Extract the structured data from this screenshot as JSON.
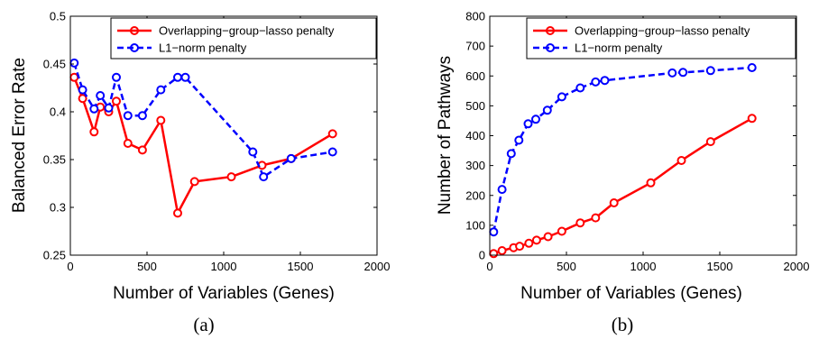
{
  "chart_data": [
    {
      "type": "line",
      "panel_label": "(a)",
      "xlabel": "Number of Variables (Genes)",
      "ylabel": "Balanced Error Rate",
      "xlim": [
        0,
        2000
      ],
      "ylim": [
        0.25,
        0.5
      ],
      "xticks": [
        "0",
        "500",
        "1000",
        "1500",
        "2000"
      ],
      "yticks": [
        "0.25",
        "0.3",
        "0.35",
        "0.4",
        "0.45",
        "0.5"
      ],
      "xtick_values": [
        0,
        500,
        1000,
        1500,
        2000
      ],
      "ytick_values": [
        0.25,
        0.3,
        0.35,
        0.4,
        0.45,
        0.5
      ],
      "legend_position": "top-right",
      "grid": false,
      "series": [
        {
          "name": "Overlapping−group−lasso penalty",
          "color": "#ff0000",
          "line_style": "solid",
          "marker": "circle",
          "x": [
            25,
            80,
            155,
            195,
            250,
            300,
            375,
            470,
            590,
            700,
            810,
            1050,
            1250,
            1440,
            1710
          ],
          "y": [
            0.436,
            0.414,
            0.379,
            0.405,
            0.4,
            0.411,
            0.367,
            0.36,
            0.391,
            0.294,
            0.327,
            0.332,
            0.344,
            0.351,
            0.377
          ]
        },
        {
          "name": "L1−norm penalty",
          "color": "#0000ff",
          "line_style": "dashed",
          "marker": "circle",
          "x": [
            25,
            80,
            155,
            195,
            250,
            300,
            375,
            470,
            590,
            700,
            750,
            1190,
            1260,
            1440,
            1710
          ],
          "y": [
            0.451,
            0.423,
            0.403,
            0.417,
            0.404,
            0.436,
            0.396,
            0.396,
            0.423,
            0.436,
            0.436,
            0.358,
            0.332,
            0.351,
            0.358
          ]
        }
      ]
    },
    {
      "type": "line",
      "panel_label": "(b)",
      "xlabel": "Number of Variables (Genes)",
      "ylabel": "Number of Pathways",
      "xlim": [
        0,
        2000
      ],
      "ylim": [
        0,
        800
      ],
      "xticks": [
        "0",
        "500",
        "1000",
        "1500",
        "2000"
      ],
      "yticks": [
        "0",
        "100",
        "200",
        "300",
        "400",
        "500",
        "600",
        "700",
        "800"
      ],
      "xtick_values": [
        0,
        500,
        1000,
        1500,
        2000
      ],
      "ytick_values": [
        0,
        100,
        200,
        300,
        400,
        500,
        600,
        700,
        800
      ],
      "legend_position": "top-right",
      "grid": false,
      "series": [
        {
          "name": "Overlapping−group−lasso penalty",
          "color": "#ff0000",
          "line_style": "solid",
          "marker": "circle",
          "x": [
            25,
            80,
            155,
            195,
            255,
            305,
            380,
            470,
            590,
            690,
            810,
            1050,
            1250,
            1440,
            1710
          ],
          "y": [
            5,
            15,
            25,
            30,
            40,
            50,
            62,
            80,
            108,
            125,
            175,
            242,
            317,
            380,
            458
          ]
        },
        {
          "name": "L1−norm penalty",
          "color": "#0000ff",
          "line_style": "dashed",
          "marker": "circle",
          "x": [
            25,
            80,
            140,
            190,
            250,
            300,
            375,
            470,
            590,
            690,
            750,
            1190,
            1260,
            1440,
            1710
          ],
          "y": [
            78,
            220,
            340,
            385,
            440,
            455,
            485,
            530,
            560,
            580,
            585,
            610,
            612,
            618,
            628
          ]
        }
      ]
    }
  ]
}
